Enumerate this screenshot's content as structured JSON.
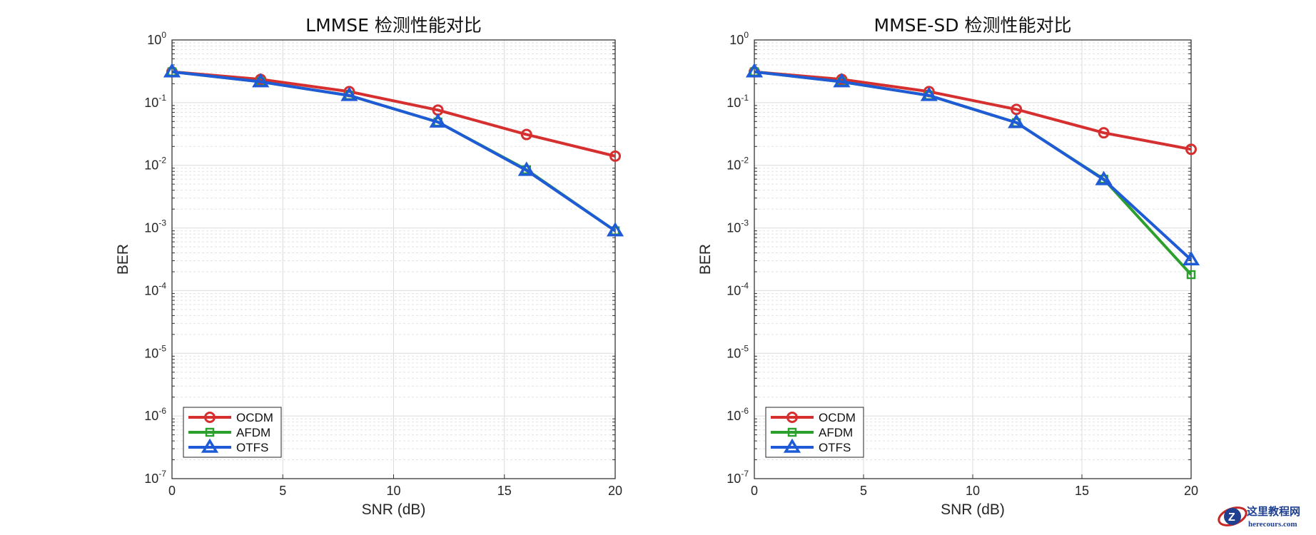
{
  "chart_data": [
    {
      "type": "line",
      "title": "LMMSE 检测性能对比",
      "xlabel": "SNR (dB)",
      "ylabel": "BER",
      "xlim": [
        0,
        20
      ],
      "ylim": [
        1e-07,
        1
      ],
      "yscale": "log",
      "grid": true,
      "minor_grid": true,
      "legend_position": "bottom-left",
      "xticks": [
        0,
        5,
        10,
        15,
        20
      ],
      "yticks": [
        -7,
        -6,
        -5,
        -4,
        -3,
        -2,
        -1,
        0
      ],
      "x": [
        0,
        4,
        8,
        12,
        16,
        20
      ],
      "series": [
        {
          "name": "OCDM",
          "color": "#d62f2f",
          "marker": "circle",
          "values": [
            0.31,
            0.235,
            0.15,
            0.076,
            0.031,
            0.014
          ]
        },
        {
          "name": "AFDM",
          "color": "#2ca02c",
          "marker": "square",
          "values": [
            0.31,
            0.215,
            0.13,
            0.049,
            0.0085,
            0.0009
          ]
        },
        {
          "name": "OTFS",
          "color": "#1f5bd6",
          "marker": "triangle",
          "values": [
            0.31,
            0.215,
            0.13,
            0.049,
            0.0083,
            0.0009
          ]
        }
      ]
    },
    {
      "type": "line",
      "title": "MMSE-SD 检测性能对比",
      "xlabel": "SNR (dB)",
      "ylabel": "BER",
      "xlim": [
        0,
        20
      ],
      "ylim": [
        1e-07,
        1
      ],
      "yscale": "log",
      "grid": true,
      "minor_grid": true,
      "legend_position": "bottom-left",
      "xticks": [
        0,
        5,
        10,
        15,
        20
      ],
      "yticks": [
        -7,
        -6,
        -5,
        -4,
        -3,
        -2,
        -1,
        0
      ],
      "x": [
        0,
        4,
        8,
        12,
        16,
        20
      ],
      "series": [
        {
          "name": "OCDM",
          "color": "#d62f2f",
          "marker": "circle",
          "values": [
            0.31,
            0.235,
            0.15,
            0.078,
            0.033,
            0.018
          ]
        },
        {
          "name": "AFDM",
          "color": "#2ca02c",
          "marker": "square",
          "values": [
            0.31,
            0.215,
            0.13,
            0.048,
            0.006,
            0.00018
          ]
        },
        {
          "name": "OTFS",
          "color": "#1f5bd6",
          "marker": "triangle",
          "values": [
            0.31,
            0.215,
            0.13,
            0.048,
            0.0059,
            0.00031
          ]
        }
      ]
    }
  ],
  "watermark": {
    "title": "这里教程网",
    "url": "herecours.com"
  }
}
